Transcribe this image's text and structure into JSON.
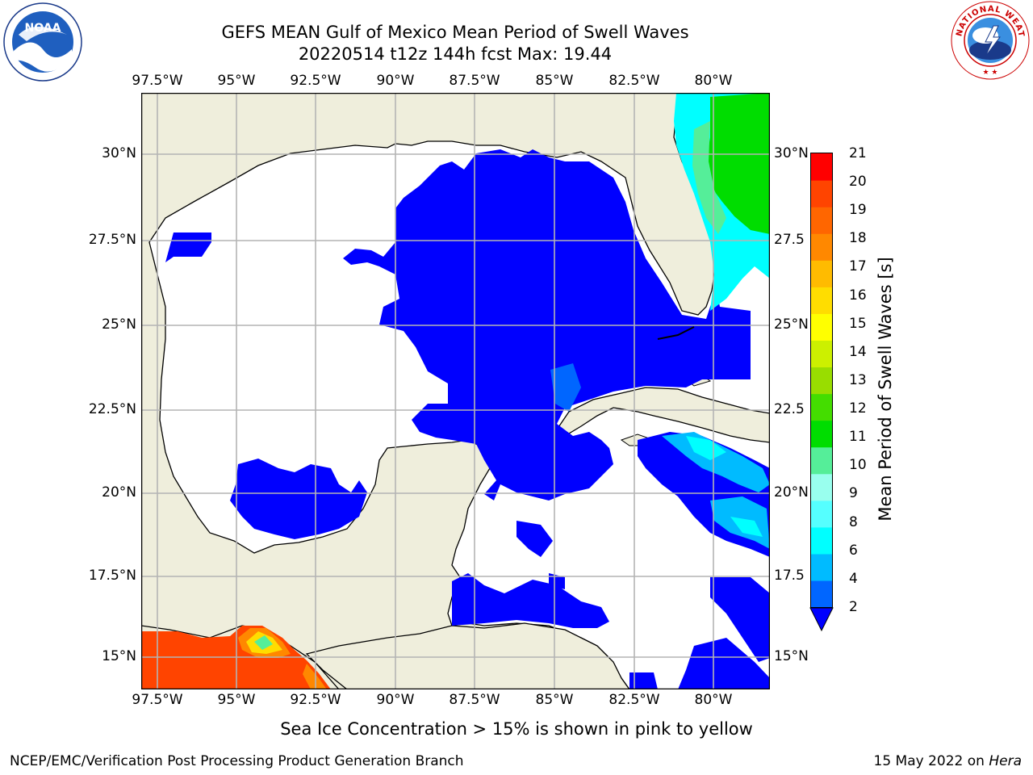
{
  "header": {
    "title_line1": "GEFS MEAN Gulf of Mexico Mean Period of Swell Waves",
    "title_line2": "20220514 t12z 144h fcst   Max: 19.44"
  },
  "logos": {
    "left": {
      "icon": "noaa-logo",
      "text": "NOAA",
      "ring_text": "NATIONAL OCEANIC AND ATMOSPHERIC ADMINISTRATION · U.S. DEPARTMENT OF COMMERCE"
    },
    "right": {
      "icon": "nws-logo",
      "ring_text": "NATIONAL WEATHER SERVICE"
    }
  },
  "map": {
    "lon_ticks_top": [
      "97.5°W",
      "95°W",
      "92.5°W",
      "90°W",
      "87.5°W",
      "85°W",
      "82.5°W",
      "80°W"
    ],
    "lon_ticks_bottom": [
      "97.5°W",
      "95°W",
      "92.5°W",
      "90°W",
      "87.5°W",
      "85°W",
      "82.5°W",
      "80°W"
    ],
    "lat_ticks_left": [
      "30°N",
      "27.5°N",
      "25°N",
      "22.5°N",
      "20°N",
      "17.5°N",
      "15°N"
    ],
    "lat_ticks_right": [
      "30°N",
      "27.5",
      "25°N",
      "22.5",
      "20°N",
      "17.5",
      "15°N"
    ],
    "colors": {
      "land": "#efeedc",
      "ocean_nodata": "#ffffff",
      "grid": "#b4b4b4",
      "coast": "#000000"
    }
  },
  "colorbar": {
    "label": "Mean Period of Swell Waves [s]",
    "ticks": [
      "21",
      "20",
      "19",
      "18",
      "17",
      "16",
      "15",
      "14",
      "13",
      "12",
      "11",
      "10",
      "9",
      "8",
      "6",
      "4",
      "2"
    ],
    "colors": [
      "#0066ff",
      "#00bbff",
      "#00ffff",
      "#55ffff",
      "#99ffee",
      "#55ee99",
      "#00dd00",
      "#44dd00",
      "#99dd00",
      "#ccf000",
      "#ffff00",
      "#ffdd00",
      "#ffbb00",
      "#ff8800",
      "#ff6600",
      "#ff4400",
      "#ff0000"
    ],
    "extend_color": "#0000ff"
  },
  "notes": {
    "sea_ice": "Sea Ice Concentration > 15% is shown in pink to yellow"
  },
  "footer": {
    "left": "NCEP/EMC/Verification Post Processing Product Generation Branch",
    "right_date": "15 May 2022 on ",
    "right_host": "Hera"
  }
}
